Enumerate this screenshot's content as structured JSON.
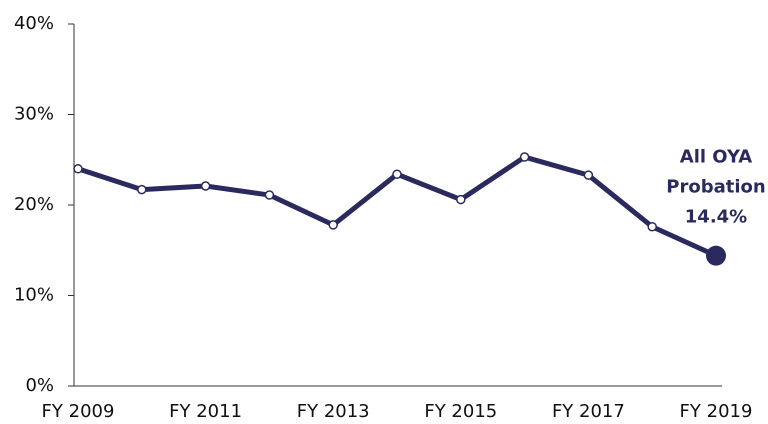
{
  "chart_data": {
    "type": "line",
    "categories": [
      "FY 2009",
      null,
      "FY 2011",
      null,
      "FY 2013",
      null,
      "FY 2015",
      null,
      "FY 2017",
      null,
      "FY 2019"
    ],
    "series": [
      {
        "name": "All OYA Probation",
        "color": "#2b2a5e",
        "values": [
          24.0,
          21.7,
          22.1,
          21.1,
          17.8,
          23.4,
          20.6,
          25.3,
          23.3,
          17.6,
          14.4
        ],
        "value_labels": [
          null,
          null,
          null,
          null,
          null,
          null,
          null,
          null,
          null,
          null,
          "14.4%"
        ]
      }
    ],
    "annotation": [
      "All OYA",
      "Probation"
    ],
    "ylim": [
      0,
      40
    ],
    "yticks": [
      {
        "value": 0,
        "label": "0%"
      },
      {
        "value": 10,
        "label": "10%"
      },
      {
        "value": 20,
        "label": "20%"
      },
      {
        "value": 30,
        "label": "30%"
      },
      {
        "value": 40,
        "label": "40%"
      }
    ],
    "grid": false
  }
}
